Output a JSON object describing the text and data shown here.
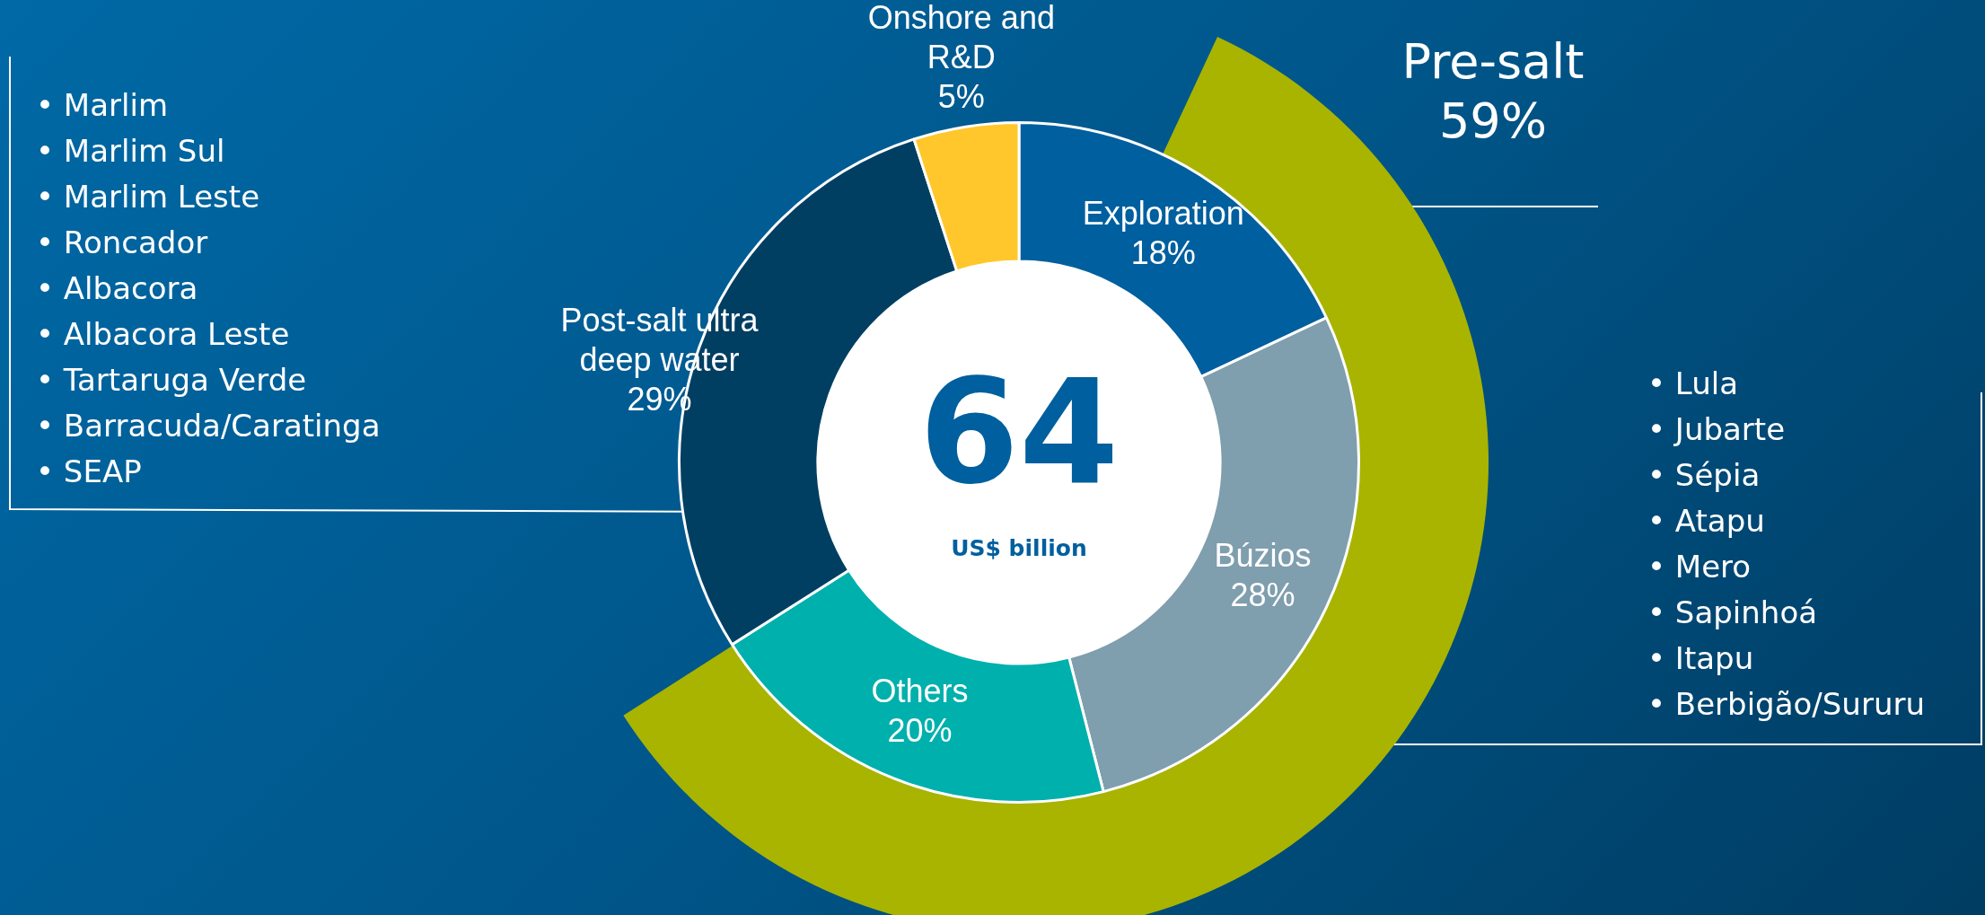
{
  "chart_data": [
    {
      "type": "donut",
      "title": "64",
      "subtitle": "US$ billion",
      "categories": [
        "Exploration",
        "Búzios",
        "Others",
        "Post-salt ultra deep water",
        "Onshore and R&D"
      ],
      "values": [
        18,
        28,
        20,
        29,
        5
      ],
      "value_labels": [
        "18%",
        "28%",
        "20%",
        "29%",
        "5%"
      ],
      "colors": [
        "#005f9e",
        "#7f9eae",
        "#00b0ac",
        "#003f62",
        "#ffc72c"
      ],
      "annotations": [
        "• Marlim\n• Marlim Sul\n• Marlim Leste\n• Roncador\n• Albacora\n• Albacora Leste\n• Tartaruga Verde\n• Barracuda/Caratinga\n• SEAP",
        "• Lula\n• Jubarte\n• Sépia\n• Atapu\n• Mero\n• Sapinhoá\n• Itapu\n• Berbigão/Sururu"
      ],
      "legend": false
    },
    {
      "type": "pie",
      "categories": [
        "Pre-salt"
      ],
      "values": [
        59
      ],
      "value_labels": [
        "59%"
      ],
      "colors": [
        "#a8b400"
      ],
      "legend": false
    }
  ]
}
